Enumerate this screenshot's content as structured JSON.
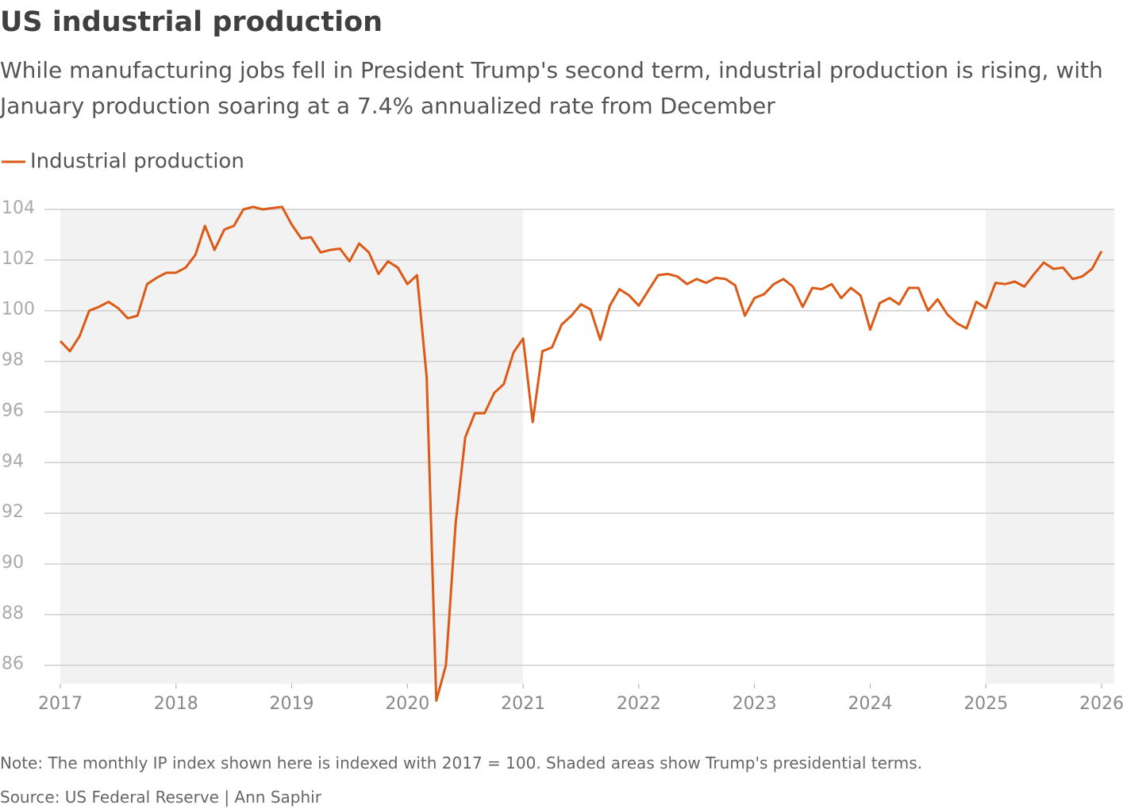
{
  "chart_data": {
    "type": "line",
    "title": "US industrial production",
    "subtitle": "While manufacturing jobs fell in President Trump's second term, industrial production is rising, with January production soaring at a 7.4% annualized rate from December",
    "note": "Note: The monthly IP index shown here is indexed with 2017 = 100. Shaded areas show Trump's presidential terms.",
    "source": "Source: US Federal Reserve | Ann Saphir",
    "x": [
      2017,
      2017.083,
      2017.167,
      2017.25,
      2017.333,
      2017.417,
      2017.5,
      2017.583,
      2017.667,
      2017.75,
      2017.833,
      2017.917,
      2018,
      2018.083,
      2018.167,
      2018.25,
      2018.333,
      2018.417,
      2018.5,
      2018.583,
      2018.667,
      2018.75,
      2018.833,
      2018.917,
      2019,
      2019.083,
      2019.167,
      2019.25,
      2019.333,
      2019.417,
      2019.5,
      2019.583,
      2019.667,
      2019.75,
      2019.833,
      2019.917,
      2020,
      2020.083,
      2020.167,
      2020.25,
      2020.333,
      2020.417,
      2020.5,
      2020.583,
      2020.667,
      2020.75,
      2020.833,
      2020.917,
      2021,
      2021.083,
      2021.167,
      2021.25,
      2021.333,
      2021.417,
      2021.5,
      2021.583,
      2021.667,
      2021.75,
      2021.833,
      2021.917,
      2022,
      2022.083,
      2022.167,
      2022.25,
      2022.333,
      2022.417,
      2022.5,
      2022.583,
      2022.667,
      2022.75,
      2022.833,
      2022.917,
      2023,
      2023.083,
      2023.167,
      2023.25,
      2023.333,
      2023.417,
      2023.5,
      2023.583,
      2023.667,
      2023.75,
      2023.833,
      2023.917,
      2024,
      2024.083,
      2024.167,
      2024.25,
      2024.333,
      2024.417,
      2024.5,
      2024.583,
      2024.667,
      2024.75,
      2024.833,
      2024.917,
      2025,
      2025.083,
      2025.167,
      2025.25,
      2025.333,
      2025.417,
      2025.5,
      2025.583,
      2025.667,
      2025.75,
      2025.833,
      2025.917,
      2026
    ],
    "series": [
      {
        "name": "Industrial production",
        "color": "#dc5a16",
        "values": [
          98.8,
          98.4,
          99.0,
          100.0,
          100.15,
          100.35,
          100.1,
          99.7,
          99.8,
          101.05,
          101.3,
          101.5,
          101.5,
          101.7,
          102.2,
          103.35,
          102.4,
          103.2,
          103.35,
          104.0,
          104.1,
          104.0,
          104.05,
          104.1,
          103.4,
          102.85,
          102.9,
          102.3,
          102.4,
          102.45,
          101.95,
          102.65,
          102.3,
          101.45,
          101.95,
          101.7,
          101.05,
          101.4,
          97.35,
          84.6,
          86.0,
          91.6,
          95.0,
          95.95,
          95.95,
          96.75,
          97.1,
          98.35,
          98.9,
          95.6,
          98.4,
          98.55,
          99.45,
          99.8,
          100.25,
          100.05,
          98.85,
          100.2,
          100.85,
          100.6,
          100.2,
          100.8,
          101.4,
          101.45,
          101.35,
          101.05,
          101.25,
          101.1,
          101.3,
          101.25,
          101.0,
          99.8,
          100.5,
          100.65,
          101.05,
          101.25,
          100.95,
          100.15,
          100.9,
          100.85,
          101.05,
          100.5,
          100.9,
          100.6,
          99.25,
          100.3,
          100.5,
          100.25,
          100.9,
          100.9,
          100.0,
          100.45,
          99.85,
          99.5,
          99.3,
          100.35,
          100.1,
          101.1,
          101.05,
          101.15,
          100.95,
          101.45,
          101.9,
          101.65,
          101.7,
          101.25,
          101.35,
          101.65,
          102.35
        ]
      }
    ],
    "xlim": [
      2017,
      2026.11
    ],
    "xticks": [
      2017,
      2018,
      2019,
      2020,
      2021,
      2022,
      2023,
      2024,
      2025,
      2026
    ],
    "ylim": [
      85.27,
      104
    ],
    "yticks": [
      86,
      88,
      90,
      92,
      94,
      96,
      98,
      100,
      102,
      104
    ],
    "grid": true,
    "shaded_ranges": [
      [
        2017,
        2021
      ],
      [
        2025,
        2026.11
      ]
    ],
    "shade_color": "#f2f2f2"
  }
}
